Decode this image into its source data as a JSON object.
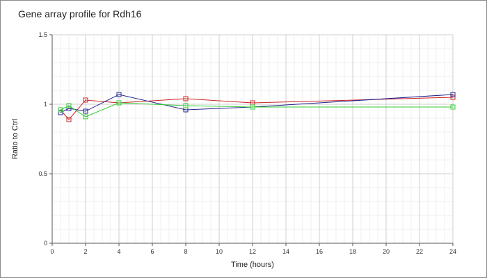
{
  "chart_data": {
    "type": "line",
    "title": "Gene array profile for Rdh16",
    "xlabel": "Time (hours)",
    "ylabel": "Ratio to Ctrl",
    "xlim": [
      0,
      24
    ],
    "ylim": [
      0,
      1.5
    ],
    "x_ticks": [
      0,
      2,
      4,
      6,
      8,
      10,
      12,
      14,
      16,
      18,
      20,
      22,
      24
    ],
    "y_ticks": [
      0,
      0.5,
      1,
      1.5
    ],
    "y_tick_labels": [
      "0",
      "0.5",
      "1",
      "1.5"
    ],
    "grid": true,
    "minor_grid": true,
    "series": [
      {
        "color": "#cc2222",
        "x": [
          0.5,
          1,
          2,
          4,
          8,
          12,
          24
        ],
        "values": [
          0.96,
          0.89,
          1.03,
          1.01,
          1.04,
          1.01,
          1.05
        ]
      },
      {
        "color": "#22228f",
        "x": [
          0.5,
          1,
          2,
          4,
          8,
          12,
          24
        ],
        "values": [
          0.94,
          0.97,
          0.95,
          1.07,
          0.96,
          0.98,
          1.07
        ]
      },
      {
        "color": "#33cc33",
        "x": [
          0.5,
          1,
          2,
          4,
          8,
          12,
          24
        ],
        "values": [
          0.96,
          0.99,
          0.91,
          1.01,
          0.99,
          0.98,
          0.98
        ]
      }
    ]
  }
}
